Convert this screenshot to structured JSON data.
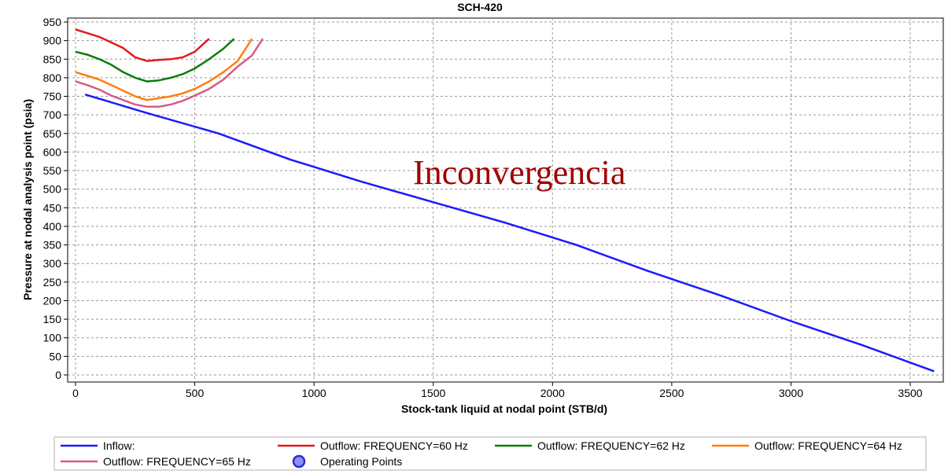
{
  "chart_data": {
    "type": "line",
    "title": "SCH-420",
    "xlabel": "Stock-tank liquid at nodal point (STB/d)",
    "ylabel": "Pressure at nodal analysis point (psia)",
    "xlim": [
      0,
      3600
    ],
    "ylim": [
      0,
      950
    ],
    "x_ticks": [
      0,
      500,
      1000,
      1500,
      2000,
      2500,
      3000,
      3500
    ],
    "y_ticks": [
      0,
      50,
      100,
      150,
      200,
      250,
      300,
      350,
      400,
      450,
      500,
      550,
      600,
      650,
      700,
      750,
      800,
      850,
      900,
      950
    ],
    "grid": true,
    "legend_placement": "bottom",
    "annotation": "Inconvergencia",
    "series": [
      {
        "name": "Inflow:",
        "color": "#1a1aff",
        "points": [
          [
            40,
            755
          ],
          [
            300,
            705
          ],
          [
            600,
            650
          ],
          [
            900,
            580
          ],
          [
            1200,
            520
          ],
          [
            1500,
            465
          ],
          [
            1800,
            410
          ],
          [
            2100,
            350
          ],
          [
            2400,
            280
          ],
          [
            2700,
            215
          ],
          [
            3000,
            145
          ],
          [
            3300,
            80
          ],
          [
            3600,
            10
          ]
        ]
      },
      {
        "name": "Outflow: FREQUENCY=60 Hz",
        "color": "#e41a1c",
        "points": [
          [
            0,
            930
          ],
          [
            50,
            920
          ],
          [
            100,
            910
          ],
          [
            150,
            895
          ],
          [
            200,
            880
          ],
          [
            250,
            855
          ],
          [
            300,
            845
          ],
          [
            350,
            848
          ],
          [
            400,
            850
          ],
          [
            450,
            855
          ],
          [
            500,
            870
          ],
          [
            560,
            905
          ]
        ]
      },
      {
        "name": "Outflow: FREQUENCY=62 Hz",
        "color": "#0b7d0b",
        "points": [
          [
            0,
            870
          ],
          [
            50,
            862
          ],
          [
            100,
            850
          ],
          [
            150,
            835
          ],
          [
            200,
            815
          ],
          [
            250,
            800
          ],
          [
            300,
            790
          ],
          [
            350,
            793
          ],
          [
            400,
            800
          ],
          [
            450,
            810
          ],
          [
            500,
            825
          ],
          [
            560,
            850
          ],
          [
            620,
            878
          ],
          [
            665,
            905
          ]
        ]
      },
      {
        "name": "Outflow: FREQUENCY=64 Hz",
        "color": "#ff7f0e",
        "points": [
          [
            0,
            815
          ],
          [
            50,
            805
          ],
          [
            100,
            795
          ],
          [
            150,
            780
          ],
          [
            200,
            765
          ],
          [
            250,
            750
          ],
          [
            300,
            740
          ],
          [
            350,
            745
          ],
          [
            400,
            750
          ],
          [
            450,
            758
          ],
          [
            500,
            770
          ],
          [
            560,
            790
          ],
          [
            620,
            815
          ],
          [
            680,
            845
          ],
          [
            740,
            905
          ]
        ]
      },
      {
        "name": "Outflow: FREQUENCY=65 Hz",
        "color": "#d45c86",
        "points": [
          [
            0,
            790
          ],
          [
            50,
            780
          ],
          [
            100,
            768
          ],
          [
            150,
            752
          ],
          [
            200,
            740
          ],
          [
            250,
            728
          ],
          [
            300,
            722
          ],
          [
            350,
            722
          ],
          [
            400,
            728
          ],
          [
            450,
            738
          ],
          [
            500,
            752
          ],
          [
            560,
            770
          ],
          [
            620,
            795
          ],
          [
            680,
            830
          ],
          [
            740,
            860
          ],
          [
            785,
            905
          ]
        ]
      },
      {
        "name": "Operating Points",
        "marker": "circle",
        "color": "#2b2bd9",
        "points": []
      }
    ]
  }
}
